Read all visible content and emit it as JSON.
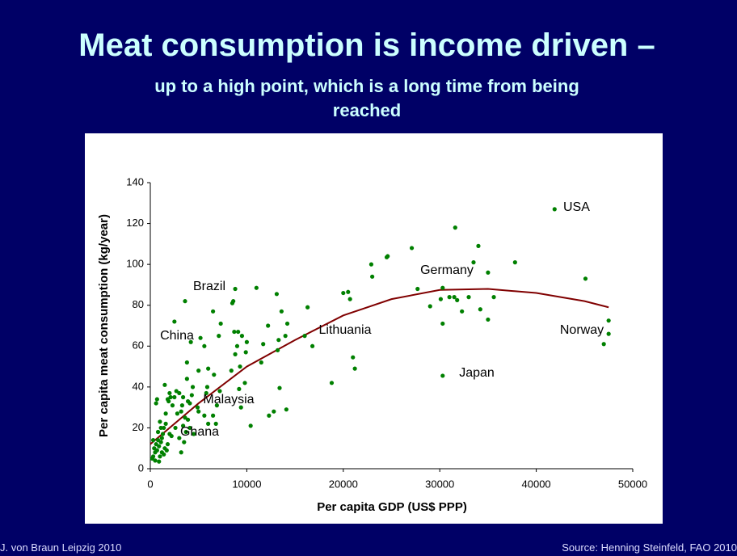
{
  "chart_data": {
    "type": "scatter",
    "title": "Meat consumption is income driven –",
    "subtitle": "up to a high point, which is a long time from being reached",
    "xlabel": "Per capita GDP (US$ PPP)",
    "ylabel": "Per capita meat consumption (kg/year)",
    "color": "#008000",
    "x": [
      41900,
      31600,
      34000,
      27100,
      24600,
      24500,
      22900,
      33500,
      37800,
      35000,
      23000,
      45100,
      27700,
      30300,
      31000,
      31500,
      33000,
      35600,
      30100,
      31800,
      20000,
      20500,
      20700,
      29000,
      34200,
      32300,
      30300,
      35000,
      47500,
      47500,
      47000,
      30300,
      21000,
      21200,
      18800,
      16000,
      16800,
      16300,
      14200,
      14000,
      13600,
      13100,
      13200,
      13300,
      14100,
      13400,
      12800,
      12300,
      12200,
      11700,
      11500,
      11000,
      10400,
      10000,
      9800,
      9900,
      9500,
      9300,
      9100,
      9000,
      8800,
      8600,
      8500,
      8800,
      8400,
      8700,
      9200,
      9400,
      7300,
      7100,
      7200,
      6900,
      6800,
      6600,
      6500,
      6500,
      6000,
      5900,
      5800,
      5600,
      5200,
      5000,
      5000,
      5600,
      6000,
      4900,
      4400,
      4300,
      4100,
      3900,
      3600,
      4200,
      3800,
      3800,
      3400,
      3600,
      3900,
      4100,
      3700,
      3400,
      3200,
      3300,
      3000,
      2700,
      2500,
      2500,
      2300,
      2100,
      2000,
      1900,
      1500,
      1800,
      1600,
      1600,
      1400,
      1300,
      1200,
      1000,
      1100,
      900,
      800,
      700,
      600,
      500,
      400,
      300,
      200,
      500,
      900,
      1200,
      1500,
      1800,
      2000,
      2200,
      600,
      700,
      2600,
      3000,
      3200,
      3500,
      1000,
      1400,
      1700,
      800,
      1100,
      300,
      2800,
      4500
    ],
    "values": [
      127,
      118,
      109,
      108,
      104,
      103.5,
      100,
      101,
      101,
      96,
      94,
      93,
      88,
      88.5,
      84,
      84,
      84,
      84,
      83,
      82.5,
      86,
      86.5,
      83,
      79.5,
      78,
      77,
      71,
      73,
      72.5,
      66,
      61,
      45.5,
      54.5,
      49,
      42,
      65,
      60,
      79,
      71,
      65,
      77,
      85.5,
      58,
      63,
      29,
      39.5,
      28,
      26,
      70,
      61,
      52,
      88.5,
      21,
      62,
      42,
      57,
      65,
      50,
      67,
      60,
      88,
      82,
      81,
      56,
      48,
      67,
      39,
      30,
      71,
      65,
      38,
      31,
      22,
      46,
      77,
      26,
      49,
      40,
      37,
      60,
      64,
      48,
      28,
      26,
      22,
      30,
      40,
      36,
      32,
      33,
      82,
      62,
      52,
      44,
      35,
      25,
      24,
      20,
      18,
      21,
      28,
      31,
      37,
      38,
      35,
      72,
      31,
      35,
      37,
      33,
      41,
      34,
      27,
      22,
      20,
      17,
      15,
      23,
      13,
      11,
      14,
      9,
      12,
      8,
      10,
      6,
      5,
      4,
      3.5,
      8,
      10,
      12,
      17,
      16,
      32,
      34,
      20,
      15,
      8,
      13,
      6,
      7,
      9,
      18,
      20,
      14,
      27,
      17
    ],
    "trend": {
      "color": "#800000",
      "x": [
        0,
        5000,
        10000,
        15000,
        20000,
        25000,
        30000,
        35000,
        40000,
        45000,
        47500
      ],
      "values": [
        12,
        32,
        50,
        63,
        75,
        83,
        87.5,
        88,
        86,
        82,
        79
      ]
    },
    "annotations": [
      "USA",
      "Germany",
      "Brazil",
      "China",
      "Lithuania",
      "Norway",
      "Japan",
      "Malaysia",
      "Ghana"
    ],
    "xlim": [
      0,
      50000
    ],
    "xticks": [
      0,
      10000,
      20000,
      30000,
      40000,
      50000
    ],
    "ylim": [
      0,
      140
    ],
    "yticks": [
      0,
      20,
      40,
      60,
      80,
      100,
      120,
      140
    ]
  },
  "footer": {
    "left": "J. von Braun Leipzig 2010",
    "right": "Source: Henning Steinfeld, FAO 2010"
  }
}
